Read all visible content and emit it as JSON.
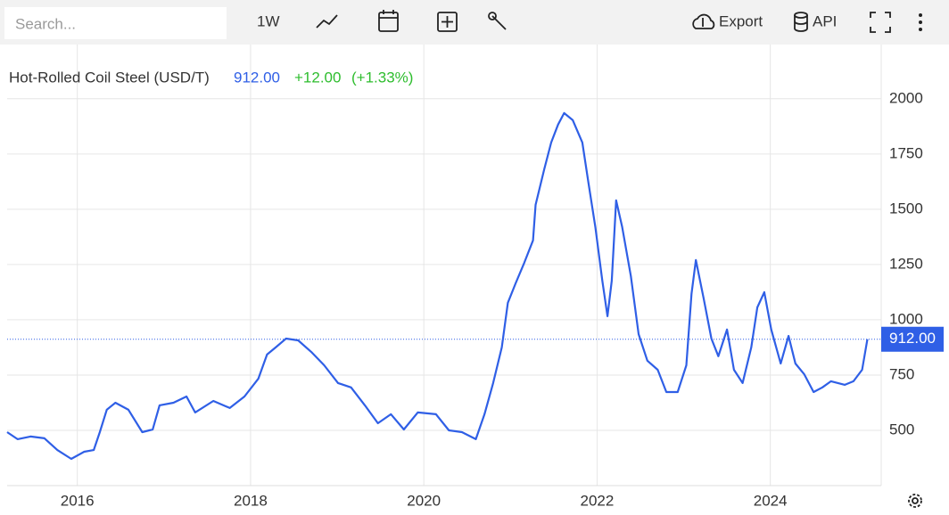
{
  "toolbar": {
    "search_placeholder": "Search...",
    "interval": "1W",
    "export": "Export",
    "api": "API"
  },
  "chart_data": {
    "type": "line",
    "title": "Hot-Rolled Coil Steel (USD/T)",
    "change": "+12.00",
    "change_pct": "(+1.33%)",
    "last": {
      "value": 912,
      "label": "912.00"
    },
    "series": [
      {
        "name": "Hot-Rolled Coil Steel",
        "color": "#2f5fe6",
        "x": [
          2015.19,
          2015.31,
          2015.46,
          2015.62,
          2015.77,
          2015.93,
          2016.08,
          2016.19,
          2016.26,
          2016.34,
          2016.44,
          2016.59,
          2016.75,
          2016.87,
          2016.95,
          2017.11,
          2017.26,
          2017.36,
          2017.57,
          2017.76,
          2017.93,
          2018.09,
          2018.19,
          2018.29,
          2018.41,
          2018.55,
          2018.7,
          2018.85,
          2019.01,
          2019.16,
          2019.32,
          2019.47,
          2019.62,
          2019.77,
          2019.93,
          2020.14,
          2020.29,
          2020.44,
          2020.6,
          2020.7,
          2020.8,
          2020.9,
          2020.97,
          2021.06,
          2021.16,
          2021.26,
          2021.29,
          2021.39,
          2021.47,
          2021.55,
          2021.62,
          2021.72,
          2021.83,
          2021.9,
          2021.98,
          2022.06,
          2022.12,
          2022.17,
          2022.22,
          2022.29,
          2022.39,
          2022.48,
          2022.58,
          2022.7,
          2022.8,
          2022.93,
          2023.03,
          2023.09,
          2023.14,
          2023.23,
          2023.32,
          2023.4,
          2023.5,
          2023.58,
          2023.68,
          2023.78,
          2023.85,
          2023.93,
          2024.01,
          2024.12,
          2024.21,
          2024.29,
          2024.39,
          2024.5,
          2024.6,
          2024.7,
          2024.86,
          2024.96,
          2025.06,
          2025.12
        ],
        "values": [
          492,
          460,
          472,
          464,
          411,
          371,
          403,
          411,
          492,
          593,
          625,
          593,
          492,
          504,
          613,
          625,
          653,
          581,
          633,
          601,
          653,
          734,
          843,
          875,
          915,
          907,
          855,
          794,
          714,
          694,
          613,
          532,
          573,
          504,
          581,
          573,
          500,
          492,
          460,
          573,
          714,
          875,
          1077,
          1165,
          1258,
          1359,
          1520,
          1681,
          1802,
          1883,
          1935,
          1903,
          1802,
          1621,
          1419,
          1177,
          1016,
          1177,
          1540,
          1419,
          1198,
          935,
          815,
          774,
          673,
          673,
          794,
          1117,
          1270,
          1097,
          915,
          835,
          956,
          774,
          714,
          875,
          1056,
          1125,
          956,
          802,
          927,
          802,
          754,
          673,
          694,
          722,
          706,
          722,
          774,
          912
        ]
      }
    ],
    "xlim": [
      2015.19,
      2025.28
    ],
    "xticks": [
      2016,
      2018,
      2020,
      2022,
      2024
    ],
    "ylim": [
      250,
      2245
    ],
    "yticks": [
      500,
      750,
      1000,
      1250,
      1500,
      1750,
      2000
    ],
    "grid": true
  }
}
